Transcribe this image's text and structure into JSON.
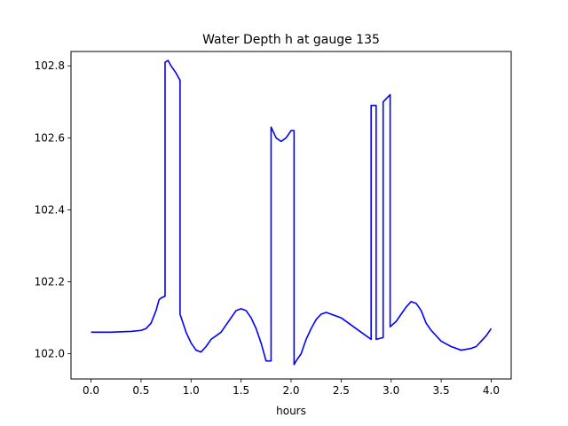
{
  "chart_data": {
    "type": "line",
    "title": "Water Depth h at gauge 135",
    "xlabel": "hours",
    "ylabel": "",
    "xlim": [
      -0.2,
      4.2
    ],
    "ylim": [
      101.93,
      102.84
    ],
    "x_ticks": [
      0.0,
      0.5,
      1.0,
      1.5,
      2.0,
      2.5,
      3.0,
      3.5,
      4.0
    ],
    "x_tick_labels": [
      "0.0",
      "0.5",
      "1.0",
      "1.5",
      "2.0",
      "2.5",
      "3.0",
      "3.5",
      "4.0"
    ],
    "y_ticks": [
      102.0,
      102.2,
      102.4,
      102.6,
      102.8
    ],
    "y_tick_labels": [
      "102.0",
      "102.2",
      "102.4",
      "102.6",
      "102.8"
    ],
    "grid": false,
    "series": [
      {
        "color": "#0000ff",
        "x": [
          0.0,
          0.2,
          0.4,
          0.5,
          0.55,
          0.6,
          0.65,
          0.68,
          0.7,
          0.74,
          0.74,
          0.77,
          0.8,
          0.85,
          0.89,
          0.89,
          0.95,
          1.0,
          1.05,
          1.1,
          1.15,
          1.2,
          1.3,
          1.4,
          1.45,
          1.5,
          1.55,
          1.6,
          1.65,
          1.7,
          1.75,
          1.8,
          1.8,
          1.85,
          1.9,
          1.95,
          2.0,
          2.03,
          2.03,
          2.05,
          2.1,
          2.15,
          2.2,
          2.25,
          2.3,
          2.35,
          2.4,
          2.5,
          2.6,
          2.7,
          2.8,
          2.8,
          2.85,
          2.85,
          2.92,
          2.92,
          2.99,
          2.99,
          3.05,
          3.1,
          3.15,
          3.2,
          3.25,
          3.3,
          3.35,
          3.4,
          3.5,
          3.6,
          3.7,
          3.8,
          3.85,
          3.9,
          3.95,
          4.0
        ],
        "y": [
          102.06,
          102.06,
          102.062,
          102.065,
          102.07,
          102.085,
          102.12,
          102.15,
          102.155,
          102.16,
          102.81,
          102.815,
          102.8,
          102.78,
          102.76,
          102.11,
          102.06,
          102.03,
          102.01,
          102.005,
          102.02,
          102.04,
          102.06,
          102.1,
          102.12,
          102.125,
          102.12,
          102.1,
          102.07,
          102.03,
          101.98,
          101.98,
          102.63,
          102.6,
          102.59,
          102.6,
          102.62,
          102.62,
          101.97,
          101.98,
          102.0,
          102.04,
          102.07,
          102.095,
          102.11,
          102.115,
          102.11,
          102.1,
          102.08,
          102.06,
          102.04,
          102.69,
          102.69,
          102.04,
          102.045,
          102.7,
          102.72,
          102.075,
          102.09,
          102.11,
          102.13,
          102.145,
          102.14,
          102.12,
          102.085,
          102.065,
          102.035,
          102.02,
          102.01,
          102.015,
          102.02,
          102.035,
          102.05,
          102.07
        ]
      }
    ]
  }
}
